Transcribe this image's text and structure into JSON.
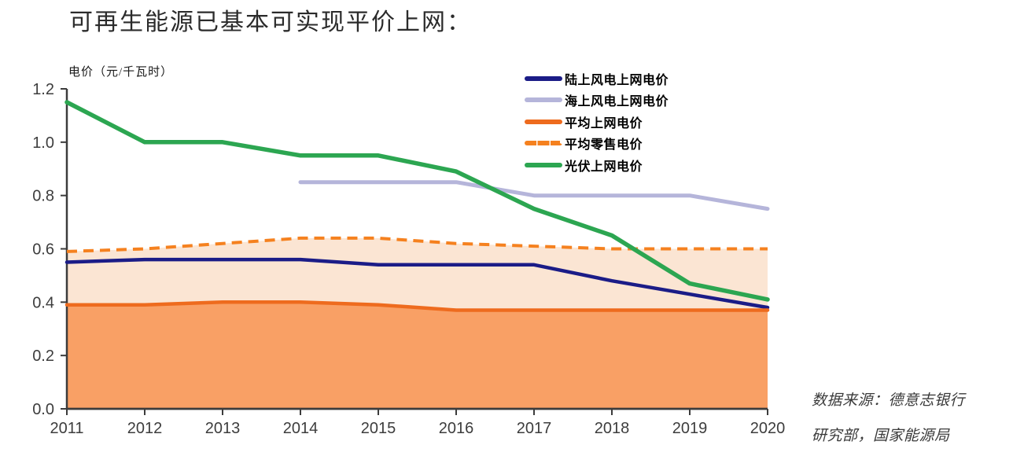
{
  "page": {
    "title": "可再生能源已基本可实现平价上网："
  },
  "source_note": {
    "line1": "数据来源：德意志银行",
    "line2": "研究部，国家能源局"
  },
  "chart_data": {
    "type": "line",
    "title": "可再生能源已基本可实现平价上网：",
    "ylabel": "电价（元/千瓦时）",
    "xlabel": "",
    "categories": [
      "2011",
      "2012",
      "2013",
      "2014",
      "2015",
      "2016",
      "2017",
      "2018",
      "2019",
      "2020"
    ],
    "ylim": [
      0,
      1.2
    ],
    "yticks": [
      "0.0",
      "0.2",
      "0.4",
      "0.6",
      "0.8",
      "1.0",
      "1.2"
    ],
    "grid": false,
    "legend_position": "top-right-inside",
    "axis_color": "#3c3c3c",
    "tick_label_color": "#3d3d3d",
    "series": [
      {
        "name": "陆上风电上网电价",
        "color": "#1b1c87",
        "style": "solid",
        "values": [
          0.55,
          0.56,
          0.56,
          0.56,
          0.54,
          0.54,
          0.54,
          0.48,
          0.43,
          0.38
        ]
      },
      {
        "name": "海上风电上网电价",
        "color": "#b5b5da",
        "style": "solid",
        "values": [
          null,
          null,
          null,
          0.85,
          0.85,
          0.85,
          0.8,
          0.8,
          0.8,
          0.75
        ]
      },
      {
        "name": "平均上网电价",
        "color": "#ee6b1e",
        "style": "solid",
        "area_fill": "#f9a065",
        "values": [
          0.39,
          0.39,
          0.4,
          0.4,
          0.39,
          0.37,
          0.37,
          0.37,
          0.37,
          0.37
        ]
      },
      {
        "name": "平均零售电价",
        "color": "#f5811f",
        "style": "dashed",
        "values": [
          0.59,
          0.6,
          0.62,
          0.64,
          0.64,
          0.62,
          0.61,
          0.6,
          0.6,
          0.6
        ]
      },
      {
        "name": "光伏上网电价",
        "color": "#2ca651",
        "style": "solid",
        "values": [
          1.15,
          1.0,
          1.0,
          0.95,
          0.95,
          0.89,
          0.75,
          0.65,
          0.47,
          0.41
        ]
      }
    ],
    "band_fill": {
      "between": [
        "平均上网电价",
        "平均零售电价"
      ],
      "color": "#fbe5d3"
    }
  }
}
